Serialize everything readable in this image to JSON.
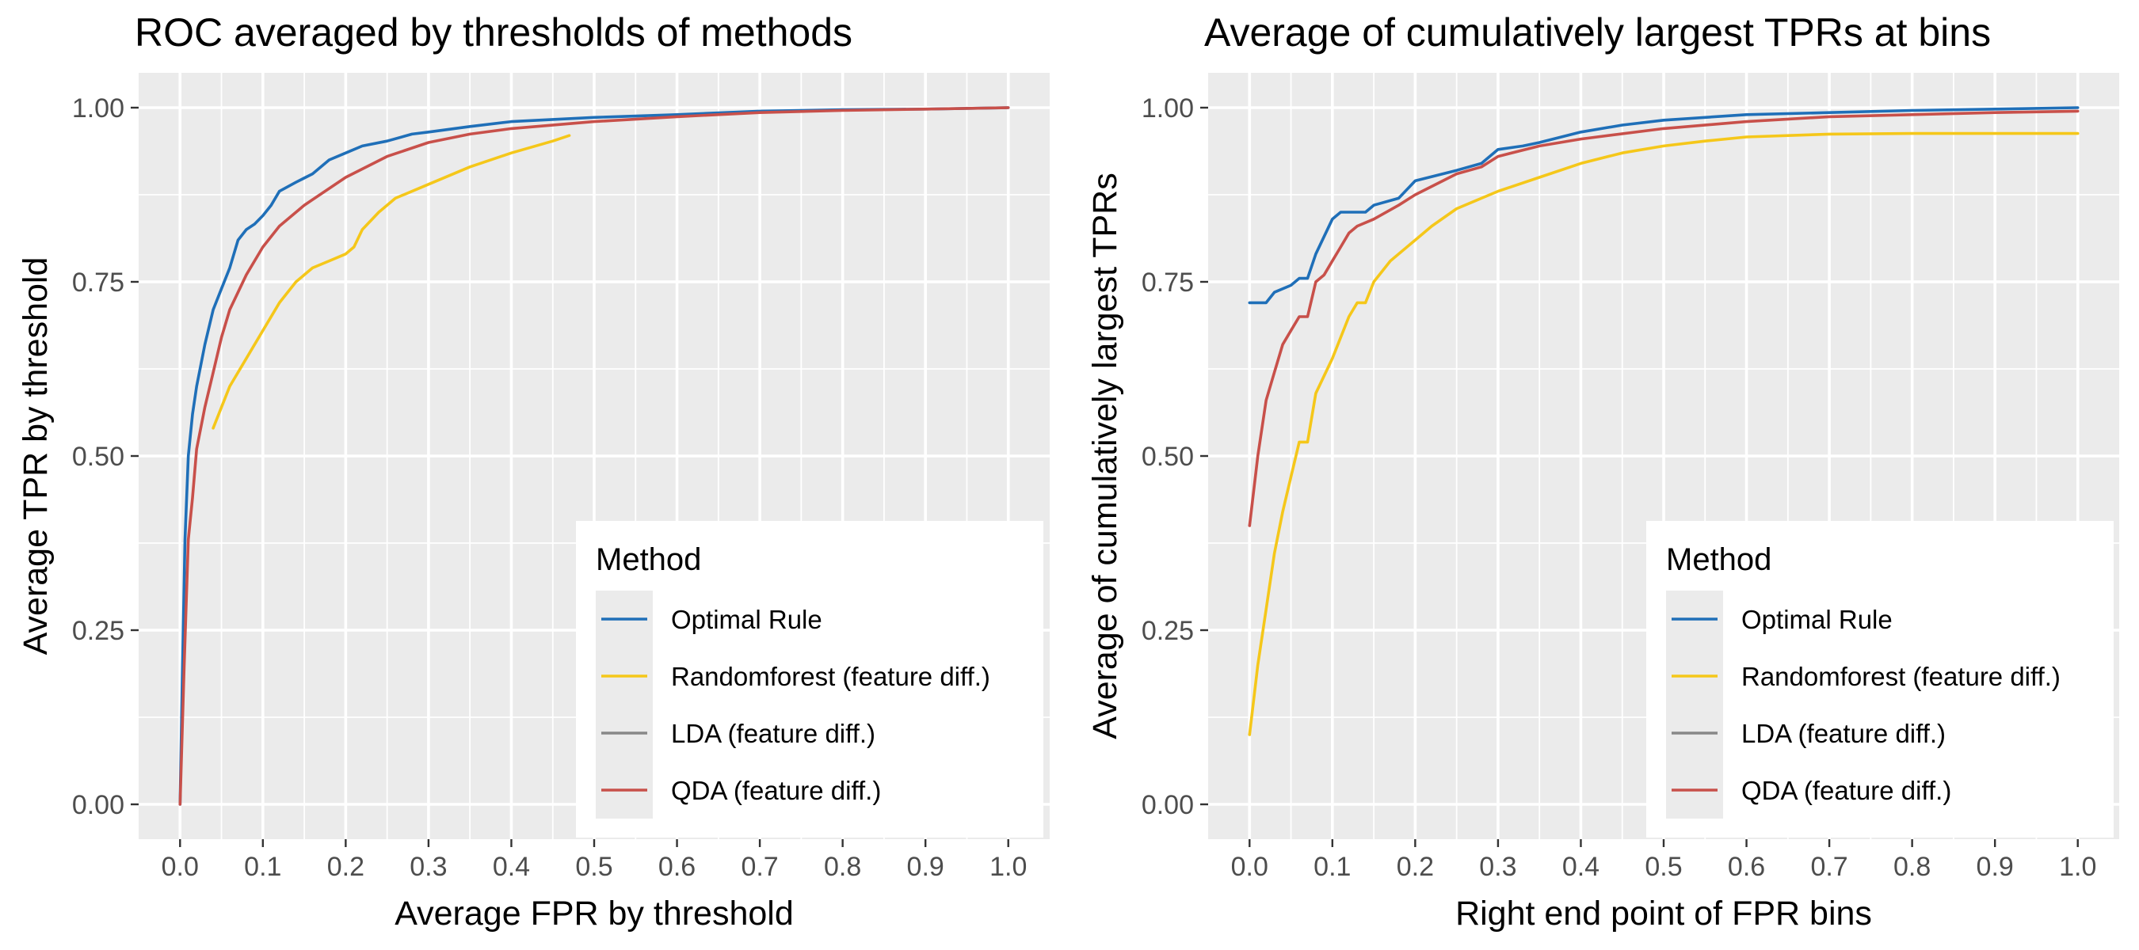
{
  "chart_data": [
    {
      "type": "line",
      "title": "ROC averaged by thresholds of methods",
      "xlabel": "Average FPR by threshold",
      "ylabel": "Average TPR by threshold",
      "xlim": [
        0,
        1
      ],
      "ylim": [
        0,
        1
      ],
      "xticks": [
        "0.0",
        "0.1",
        "0.2",
        "0.3",
        "0.4",
        "0.5",
        "0.6",
        "0.7",
        "0.8",
        "0.9",
        "1.0"
      ],
      "yticks": [
        "0.00",
        "0.25",
        "0.50",
        "0.75",
        "1.00"
      ],
      "legend": {
        "title": "Method",
        "position": "bottom-right"
      },
      "series": [
        {
          "name": "Optimal Rule",
          "color": "#1f6fb8",
          "points": [
            [
              0,
              0
            ],
            [
              0.003,
              0.2
            ],
            [
              0.006,
              0.38
            ],
            [
              0.01,
              0.5
            ],
            [
              0.015,
              0.56
            ],
            [
              0.02,
              0.6
            ],
            [
              0.03,
              0.66
            ],
            [
              0.04,
              0.71
            ],
            [
              0.05,
              0.74
            ],
            [
              0.06,
              0.77
            ],
            [
              0.07,
              0.81
            ],
            [
              0.08,
              0.825
            ],
            [
              0.09,
              0.833
            ],
            [
              0.1,
              0.845
            ],
            [
              0.11,
              0.86
            ],
            [
              0.12,
              0.88
            ],
            [
              0.14,
              0.893
            ],
            [
              0.16,
              0.905
            ],
            [
              0.18,
              0.925
            ],
            [
              0.2,
              0.935
            ],
            [
              0.22,
              0.945
            ],
            [
              0.25,
              0.952
            ],
            [
              0.28,
              0.962
            ],
            [
              0.3,
              0.965
            ],
            [
              0.35,
              0.973
            ],
            [
              0.4,
              0.98
            ],
            [
              0.5,
              0.986
            ],
            [
              0.6,
              0.99
            ],
            [
              0.7,
              0.995
            ],
            [
              0.8,
              0.997
            ],
            [
              0.9,
              0.998
            ],
            [
              1,
              1
            ]
          ]
        },
        {
          "name": "Randomforest (feature diff.)",
          "color": "#f5c71a",
          "points": [
            [
              0.04,
              0.54
            ],
            [
              0.06,
              0.6
            ],
            [
              0.08,
              0.64
            ],
            [
              0.1,
              0.68
            ],
            [
              0.12,
              0.72
            ],
            [
              0.14,
              0.75
            ],
            [
              0.16,
              0.77
            ],
            [
              0.18,
              0.78
            ],
            [
              0.2,
              0.79
            ],
            [
              0.21,
              0.8
            ],
            [
              0.22,
              0.825
            ],
            [
              0.24,
              0.85
            ],
            [
              0.26,
              0.87
            ],
            [
              0.3,
              0.89
            ],
            [
              0.35,
              0.915
            ],
            [
              0.4,
              0.935
            ],
            [
              0.45,
              0.952
            ],
            [
              0.47,
              0.96
            ]
          ]
        },
        {
          "name": "LDA (feature diff.)",
          "color": "#888888",
          "points": []
        },
        {
          "name": "QDA (feature diff.)",
          "color": "#c8504a",
          "points": [
            [
              0,
              0
            ],
            [
              0.005,
              0.2
            ],
            [
              0.01,
              0.38
            ],
            [
              0.015,
              0.44
            ],
            [
              0.02,
              0.51
            ],
            [
              0.03,
              0.57
            ],
            [
              0.04,
              0.62
            ],
            [
              0.05,
              0.67
            ],
            [
              0.06,
              0.71
            ],
            [
              0.08,
              0.76
            ],
            [
              0.1,
              0.8
            ],
            [
              0.12,
              0.83
            ],
            [
              0.15,
              0.86
            ],
            [
              0.2,
              0.9
            ],
            [
              0.25,
              0.93
            ],
            [
              0.3,
              0.95
            ],
            [
              0.35,
              0.962
            ],
            [
              0.4,
              0.97
            ],
            [
              0.5,
              0.98
            ],
            [
              0.6,
              0.987
            ],
            [
              0.7,
              0.993
            ],
            [
              0.8,
              0.996
            ],
            [
              0.9,
              0.998
            ],
            [
              1,
              1
            ]
          ]
        }
      ]
    },
    {
      "type": "line",
      "title": "Average of cumulatively largest TPRs at bins",
      "xlabel": "Right end point of FPR bins",
      "ylabel": "Average of cumulatively largest TPRs",
      "xlim": [
        0,
        1
      ],
      "ylim": [
        0,
        1
      ],
      "xticks": [
        "0.0",
        "0.1",
        "0.2",
        "0.3",
        "0.4",
        "0.5",
        "0.6",
        "0.7",
        "0.8",
        "0.9",
        "1.0"
      ],
      "yticks": [
        "0.00",
        "0.25",
        "0.50",
        "0.75",
        "1.00"
      ],
      "legend": {
        "title": "Method",
        "position": "bottom-right"
      },
      "series": [
        {
          "name": "Optimal Rule",
          "color": "#1f6fb8",
          "points": [
            [
              0,
              0.72
            ],
            [
              0.02,
              0.72
            ],
            [
              0.03,
              0.735
            ],
            [
              0.05,
              0.745
            ],
            [
              0.06,
              0.755
            ],
            [
              0.07,
              0.755
            ],
            [
              0.08,
              0.79
            ],
            [
              0.1,
              0.84
            ],
            [
              0.11,
              0.85
            ],
            [
              0.14,
              0.85
            ],
            [
              0.15,
              0.86
            ],
            [
              0.18,
              0.87
            ],
            [
              0.2,
              0.895
            ],
            [
              0.25,
              0.91
            ],
            [
              0.28,
              0.92
            ],
            [
              0.3,
              0.94
            ],
            [
              0.33,
              0.945
            ],
            [
              0.35,
              0.95
            ],
            [
              0.4,
              0.965
            ],
            [
              0.45,
              0.975
            ],
            [
              0.5,
              0.982
            ],
            [
              0.6,
              0.99
            ],
            [
              0.7,
              0.993
            ],
            [
              0.8,
              0.996
            ],
            [
              0.9,
              0.998
            ],
            [
              1,
              1
            ]
          ]
        },
        {
          "name": "Randomforest (feature diff.)",
          "color": "#f5c71a",
          "points": [
            [
              0,
              0.1
            ],
            [
              0.01,
              0.2
            ],
            [
              0.02,
              0.28
            ],
            [
              0.03,
              0.36
            ],
            [
              0.04,
              0.42
            ],
            [
              0.05,
              0.47
            ],
            [
              0.06,
              0.52
            ],
            [
              0.07,
              0.52
            ],
            [
              0.08,
              0.59
            ],
            [
              0.1,
              0.64
            ],
            [
              0.12,
              0.7
            ],
            [
              0.13,
              0.72
            ],
            [
              0.14,
              0.72
            ],
            [
              0.15,
              0.75
            ],
            [
              0.17,
              0.78
            ],
            [
              0.2,
              0.81
            ],
            [
              0.22,
              0.83
            ],
            [
              0.25,
              0.855
            ],
            [
              0.28,
              0.87
            ],
            [
              0.3,
              0.88
            ],
            [
              0.35,
              0.9
            ],
            [
              0.4,
              0.92
            ],
            [
              0.45,
              0.935
            ],
            [
              0.5,
              0.945
            ],
            [
              0.55,
              0.952
            ],
            [
              0.6,
              0.958
            ],
            [
              0.7,
              0.962
            ],
            [
              0.8,
              0.963
            ],
            [
              0.9,
              0.963
            ],
            [
              1,
              0.963
            ]
          ]
        },
        {
          "name": "LDA (feature diff.)",
          "color": "#888888",
          "points": []
        },
        {
          "name": "QDA (feature diff.)",
          "color": "#c8504a",
          "points": [
            [
              0,
              0.4
            ],
            [
              0.01,
              0.5
            ],
            [
              0.02,
              0.58
            ],
            [
              0.03,
              0.62
            ],
            [
              0.04,
              0.66
            ],
            [
              0.05,
              0.68
            ],
            [
              0.06,
              0.7
            ],
            [
              0.07,
              0.7
            ],
            [
              0.08,
              0.75
            ],
            [
              0.09,
              0.76
            ],
            [
              0.1,
              0.78
            ],
            [
              0.11,
              0.8
            ],
            [
              0.12,
              0.82
            ],
            [
              0.13,
              0.83
            ],
            [
              0.15,
              0.84
            ],
            [
              0.18,
              0.86
            ],
            [
              0.2,
              0.875
            ],
            [
              0.25,
              0.905
            ],
            [
              0.28,
              0.915
            ],
            [
              0.3,
              0.93
            ],
            [
              0.35,
              0.945
            ],
            [
              0.4,
              0.955
            ],
            [
              0.5,
              0.97
            ],
            [
              0.6,
              0.98
            ],
            [
              0.7,
              0.987
            ],
            [
              0.8,
              0.99
            ],
            [
              0.9,
              0.993
            ],
            [
              1,
              0.995
            ]
          ]
        }
      ]
    }
  ]
}
